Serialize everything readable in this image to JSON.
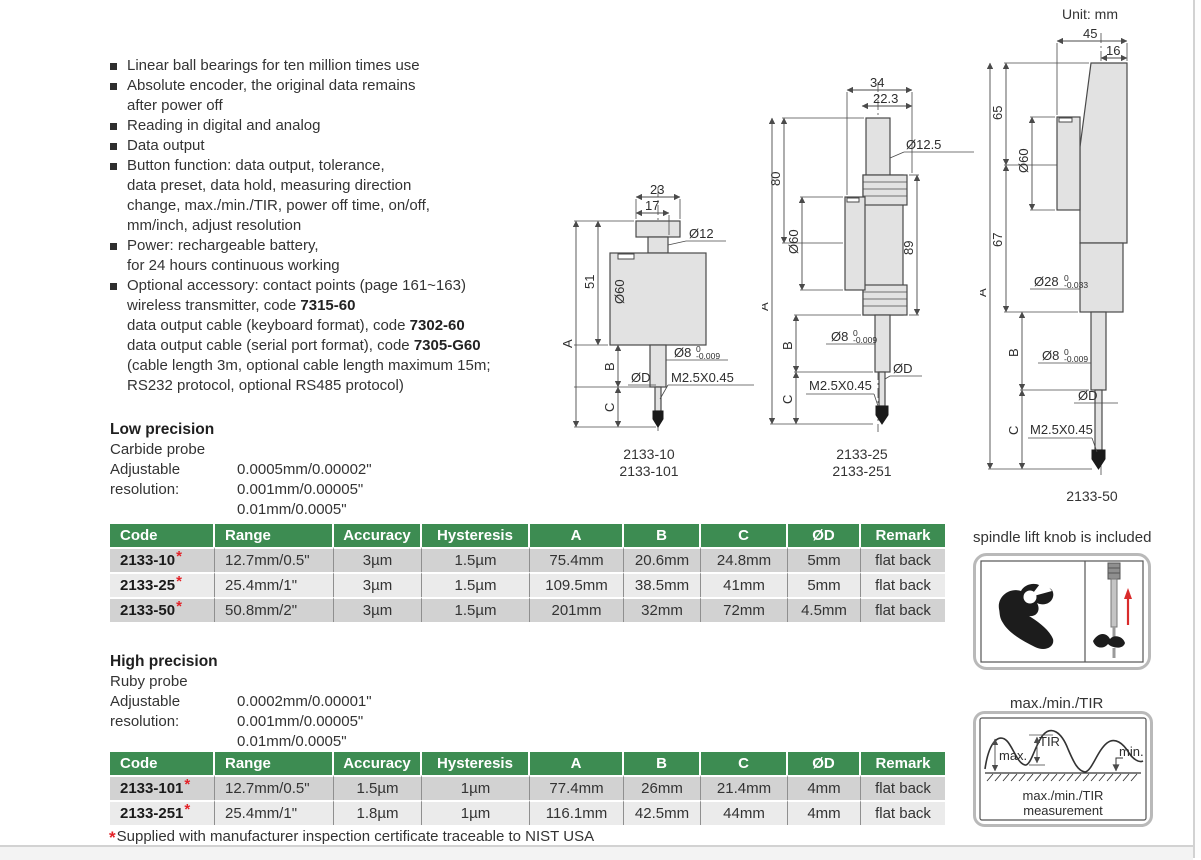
{
  "colors": {
    "header_green": "#3d8c52",
    "row_dark": "#d2d2d2",
    "row_light": "#ebebeb",
    "accent_red": "#e32228"
  },
  "features": [
    [
      [
        "Linear ball bearings for ten million times use"
      ]
    ],
    [
      [
        "Absolute encoder, the original data remains"
      ],
      [
        "after power off"
      ]
    ],
    [
      [
        "Reading in digital and analog"
      ]
    ],
    [
      [
        "Data output"
      ]
    ],
    [
      [
        "Button function: data output, tolerance,"
      ],
      [
        "data preset, data hold, measuring direction"
      ],
      [
        "change, max./min./TIR, power off time, on/off,"
      ],
      [
        "mm/inch, adjust resolution"
      ]
    ],
    [
      [
        "Power: rechargeable battery,"
      ],
      [
        "for 24 hours continuous working"
      ]
    ],
    [
      [
        "Optional accessory: contact points (page 161~163)"
      ],
      [
        "wireless transmitter, code ",
        {
          "b": "7315-60"
        }
      ],
      [
        "data output cable (keyboard format), code ",
        {
          "b": "7302-60"
        }
      ],
      [
        "data output cable (serial port format), code ",
        {
          "b": "7305-G60"
        }
      ],
      [
        "(cable length 3m, optional cable length maximum 15m;"
      ],
      [
        "RS232 protocol, optional RS485 protocol)"
      ]
    ]
  ],
  "low": {
    "title": "Low precision",
    "probe": "Carbide probe",
    "res_label": "Adjustable resolution:",
    "resolutions": [
      "0.0005mm/0.00002\"",
      "0.001mm/0.00005\"",
      "0.01mm/0.0005\""
    ],
    "table": {
      "headers": [
        "Code",
        "Range",
        "Accuracy",
        "Hysteresis",
        "A",
        "B",
        "C",
        "ØD",
        "Remark"
      ],
      "rows": [
        {
          "star": true,
          "cells": [
            "2133-10",
            "12.7mm/0.5\"",
            "3µm",
            "1.5µm",
            "75.4mm",
            "20.6mm",
            "24.8mm",
            "5mm",
            "flat back"
          ]
        },
        {
          "star": true,
          "cells": [
            "2133-25",
            "25.4mm/1\"",
            "3µm",
            "1.5µm",
            "109.5mm",
            "38.5mm",
            "41mm",
            "5mm",
            "flat back"
          ]
        },
        {
          "star": true,
          "cells": [
            "2133-50",
            "50.8mm/2\"",
            "3µm",
            "1.5µm",
            "201mm",
            "32mm",
            "72mm",
            "4.5mm",
            "flat back"
          ]
        }
      ]
    }
  },
  "high": {
    "title": "High precision",
    "probe": "Ruby probe",
    "res_label": "Adjustable resolution:",
    "resolutions": [
      "0.0002mm/0.00001\"",
      "0.001mm/0.00005\"",
      "0.01mm/0.0005\""
    ],
    "table": {
      "headers": [
        "Code",
        "Range",
        "Accuracy",
        "Hysteresis",
        "A",
        "B",
        "C",
        "ØD",
        "Remark"
      ],
      "rows": [
        {
          "star": true,
          "cells": [
            "2133-101",
            "12.7mm/0.5\"",
            "1.5µm",
            "1µm",
            "77.4mm",
            "26mm",
            "21.4mm",
            "4mm",
            "flat back"
          ]
        },
        {
          "star": true,
          "cells": [
            "2133-251",
            "25.4mm/1\"",
            "1.8µm",
            "1µm",
            "116.1mm",
            "42.5mm",
            "44mm",
            "4mm",
            "flat back"
          ]
        }
      ]
    }
  },
  "footnote": {
    "marker": "*",
    "text": "Supplied with manufacturer inspection certificate traceable to NIST USA"
  },
  "drawings": {
    "unit": "Unit: mm",
    "d1": {
      "codes": [
        "2133-10",
        "2133-101"
      ],
      "width_outer": "23",
      "width_inner": "17",
      "stem_dia": "Ø12",
      "height": "51",
      "dial": "Ø60",
      "a": "A",
      "b": "B",
      "c": "C",
      "lower_dia": "Ø8",
      "tol_hi": "0",
      "tol_lo": "-0.009",
      "tip_dia": "ØD",
      "thread": "M2.5X0.45"
    },
    "d2": {
      "codes": [
        "2133-25",
        "2133-251"
      ],
      "width_outer": "34",
      "width_inner": "22.3",
      "stem_dia": "Ø12.5",
      "height": "80",
      "dial": "Ø60",
      "back": "89",
      "a": "A",
      "b": "B",
      "c": "C",
      "lower_dia": "Ø8",
      "tol_hi": "0",
      "tol_lo": "-0.009",
      "tip_dia": "ØD",
      "thread": "M2.5X0.45"
    },
    "d3": {
      "codes": [
        "2133-50"
      ],
      "width_outer": "45",
      "width_inner": "16",
      "height_upper": "65",
      "height_lower": "67",
      "dial": "Ø60",
      "sleeve_dia": "Ø28",
      "sleeve_tol_hi": "0",
      "sleeve_tol_lo": "-0.033",
      "a": "A",
      "b": "B",
      "c": "C",
      "lower_dia": "Ø8",
      "tol_hi": "0",
      "tol_lo": "-0.009",
      "tip_dia": "ØD",
      "thread": "M2.5X0.45"
    }
  },
  "panels": {
    "knob": {
      "title": "spindle lift knob is included"
    },
    "tir": {
      "title": "max./min./TIR",
      "label_max": "max.",
      "label_tir": "TIR",
      "label_min": "min.",
      "caption1": "max./min./TIR",
      "caption2": "measurement"
    }
  }
}
